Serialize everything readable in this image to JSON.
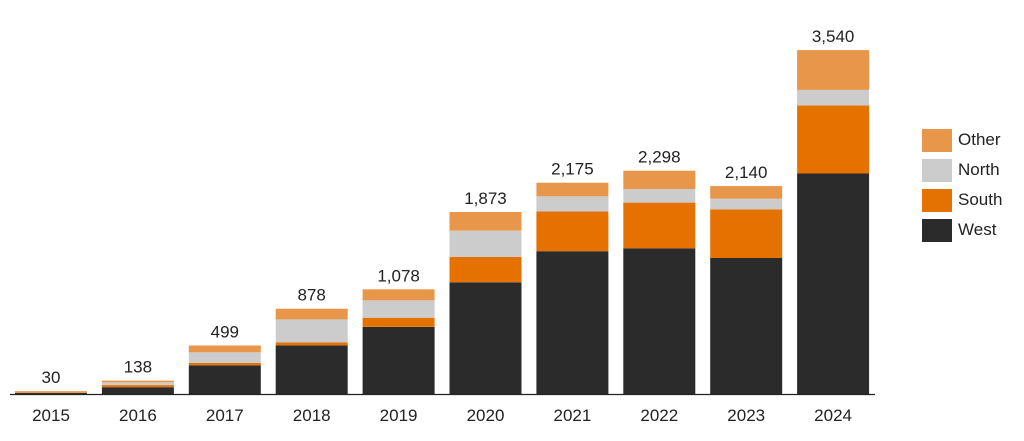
{
  "chart_data": {
    "type": "bar",
    "stacked": true,
    "title": "",
    "xlabel": "",
    "ylabel": "",
    "categories": [
      "2015",
      "2016",
      "2017",
      "2018",
      "2019",
      "2020",
      "2021",
      "2022",
      "2023",
      "2024"
    ],
    "series": [
      {
        "name": "West",
        "color": "#2b2b2b",
        "values": [
          10,
          70,
          295,
          500,
          690,
          1150,
          1470,
          1500,
          1400,
          2270
        ]
      },
      {
        "name": "South",
        "color": "#e57200",
        "values": [
          8,
          22,
          25,
          30,
          95,
          260,
          410,
          470,
          500,
          700
        ]
      },
      {
        "name": "North",
        "color": "#cccccc",
        "values": [
          4,
          28,
          109,
          238,
          180,
          270,
          155,
          140,
          110,
          160
        ]
      },
      {
        "name": "Other",
        "color": "#e8964a",
        "values": [
          8,
          18,
          70,
          110,
          113,
          193,
          140,
          188,
          130,
          410
        ]
      }
    ],
    "totals": [
      "30",
      "138",
      "499",
      "878",
      "1,078",
      "1,873",
      "2,175",
      "2,298",
      "2,140",
      "3,540"
    ],
    "ylim": [
      0,
      3750
    ],
    "y_axis_visible": false,
    "grid": false,
    "legend_position": "right",
    "legend_order": [
      "Other",
      "North",
      "South",
      "West"
    ]
  }
}
